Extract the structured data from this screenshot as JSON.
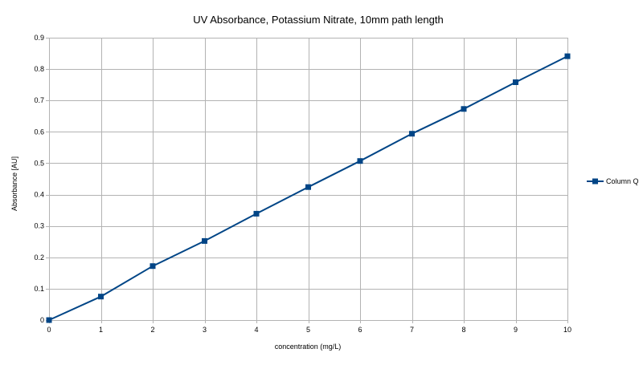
{
  "chart_data": {
    "type": "line",
    "title": "UV Absorbance, Potassium Nitrate, 10mm path length",
    "xlabel": "concentration (mg/L)",
    "ylabel": "Absorbance [AU]",
    "x": [
      0,
      1,
      2,
      3,
      4,
      5,
      6,
      7,
      8,
      9,
      10
    ],
    "xlim": [
      0,
      10
    ],
    "ylim": [
      0,
      0.9
    ],
    "x_ticks": [
      "0",
      "1",
      "2",
      "3",
      "4",
      "5",
      "6",
      "7",
      "8",
      "9",
      "10"
    ],
    "y_ticks": [
      "0",
      "0.1",
      "0.2",
      "0.3",
      "0.4",
      "0.5",
      "0.6",
      "0.7",
      "0.8",
      "0.9"
    ],
    "grid": true,
    "legend_position": "right",
    "series": [
      {
        "name": "Column Q",
        "color": "#004586",
        "marker": "square",
        "values": [
          0,
          0.075,
          0.172,
          0.252,
          0.339,
          0.424,
          0.507,
          0.594,
          0.673,
          0.758,
          0.841
        ]
      }
    ]
  }
}
